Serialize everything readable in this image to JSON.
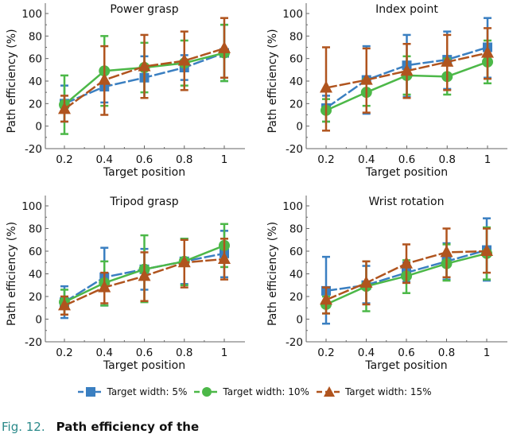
{
  "legend": [
    {
      "label": "Target width: 5%",
      "color": "#3a7fc1",
      "marker": "square"
    },
    {
      "label": "Target width: 10%",
      "color": "#4cb848",
      "marker": "circle"
    },
    {
      "label": "Target width: 15%",
      "color": "#b0541e",
      "marker": "triangle"
    }
  ],
  "caption": {
    "fig": "Fig. 12.",
    "text": "Path efficiency of the"
  },
  "chart_data": [
    {
      "type": "line",
      "title": "Power grasp",
      "xlabel": "Target position",
      "ylabel": "Path efficiency (%)",
      "x": [
        0.2,
        0.4,
        0.6,
        0.8,
        1
      ],
      "xticklabels": [
        "0.2",
        "0.4",
        "0.6",
        "0.8",
        "1"
      ],
      "ylim": [
        -20,
        100
      ],
      "yticks": [
        -20,
        0,
        20,
        40,
        60,
        80,
        100
      ],
      "grid": false,
      "series": [
        {
          "name": "Target width: 5%",
          "values": [
            20,
            35,
            43,
            52,
            65
          ],
          "lower": [
            4,
            21,
            25,
            41,
            40
          ],
          "upper": [
            36,
            49,
            62,
            63,
            90
          ]
        },
        {
          "name": "Target width: 10%",
          "values": [
            19,
            49,
            52,
            56,
            65
          ],
          "lower": [
            -7,
            18,
            30,
            36,
            40
          ],
          "upper": [
            45,
            80,
            74,
            76,
            90
          ]
        },
        {
          "name": "Target width: 15%",
          "values": [
            15,
            41,
            53,
            58,
            69
          ],
          "lower": [
            4,
            10,
            25,
            32,
            43
          ],
          "upper": [
            27,
            71,
            81,
            84,
            96
          ]
        }
      ]
    },
    {
      "type": "line",
      "title": "Index point",
      "xlabel": "Target position",
      "ylabel": "Path efficiency (%)",
      "x": [
        0.2,
        0.4,
        0.6,
        0.8,
        1
      ],
      "xticklabels": [
        "0.2",
        "0.4",
        "0.6",
        "0.8",
        "1"
      ],
      "ylim": [
        -20,
        100
      ],
      "yticks": [
        -20,
        0,
        20,
        40,
        60,
        80,
        100
      ],
      "grid": false,
      "series": [
        {
          "name": "Target width: 5%",
          "values": [
            16,
            41,
            54,
            59,
            70
          ],
          "lower": [
            4,
            11,
            26,
            33,
            43
          ],
          "upper": [
            27,
            71,
            81,
            84,
            96
          ]
        },
        {
          "name": "Target width: 10%",
          "values": [
            14,
            30,
            45,
            44,
            57
          ],
          "lower": [
            4,
            18,
            28,
            28,
            38
          ],
          "upper": [
            24,
            42,
            62,
            60,
            76
          ]
        },
        {
          "name": "Target width: 15%",
          "values": [
            34,
            41,
            49,
            57,
            65
          ],
          "lower": [
            -4,
            12,
            25,
            32,
            42
          ],
          "upper": [
            70,
            69,
            73,
            81,
            87
          ]
        }
      ]
    },
    {
      "type": "line",
      "title": "Tripod grasp",
      "xlabel": "Target position",
      "ylabel": "Path efficiency (%)",
      "x": [
        0.2,
        0.4,
        0.6,
        0.8,
        1
      ],
      "xticklabels": [
        "0.2",
        "0.4",
        "0.6",
        "0.8",
        "1"
      ],
      "ylim": [
        -20,
        100
      ],
      "yticks": [
        -20,
        0,
        20,
        40,
        60,
        80,
        100
      ],
      "grid": false,
      "series": [
        {
          "name": "Target width: 5%",
          "values": [
            15,
            37,
            44,
            51,
            58
          ],
          "lower": [
            1,
            12,
            26,
            31,
            37
          ],
          "upper": [
            29,
            63,
            62,
            71,
            78
          ]
        },
        {
          "name": "Target width: 10%",
          "values": [
            15,
            32,
            44,
            51,
            65
          ],
          "lower": [
            4,
            12,
            15,
            30,
            46
          ],
          "upper": [
            26,
            51,
            74,
            71,
            84
          ]
        },
        {
          "name": "Target width: 15%",
          "values": [
            12,
            28,
            38,
            50,
            53
          ],
          "lower": [
            4,
            14,
            16,
            28,
            35
          ],
          "upper": [
            20,
            41,
            59,
            70,
            71
          ]
        }
      ]
    },
    {
      "type": "line",
      "title": "Wrist rotation",
      "xlabel": "Target position",
      "ylabel": "Path efficiency (%)",
      "x": [
        0.2,
        0.4,
        0.6,
        0.8,
        1
      ],
      "xticklabels": [
        "0.2",
        "0.4",
        "0.6",
        "0.8",
        "1"
      ],
      "ylim": [
        -20,
        100
      ],
      "yticks": [
        -20,
        0,
        20,
        40,
        60,
        80,
        100
      ],
      "grid": false,
      "series": [
        {
          "name": "Target width: 5%",
          "values": [
            25,
            30,
            41,
            51,
            61
          ],
          "lower": [
            -4,
            14,
            33,
            35,
            34
          ],
          "upper": [
            55,
            47,
            50,
            67,
            89
          ]
        },
        {
          "name": "Target width: 10%",
          "values": [
            13,
            29,
            38,
            49,
            58
          ],
          "lower": [
            5,
            7,
            23,
            34,
            35
          ],
          "upper": [
            20,
            51,
            52,
            66,
            81
          ]
        },
        {
          "name": "Target width: 15%",
          "values": [
            17,
            32,
            49,
            59,
            60
          ],
          "lower": [
            5,
            13,
            32,
            37,
            41
          ],
          "upper": [
            28,
            51,
            66,
            80,
            80
          ]
        }
      ]
    }
  ]
}
